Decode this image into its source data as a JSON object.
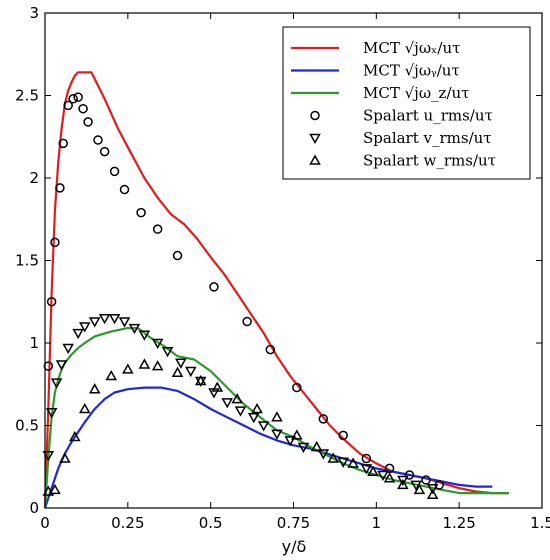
{
  "chart_data": {
    "type": "line",
    "xlabel": "y/δ",
    "ylabel": "",
    "xlim": [
      0,
      1.5
    ],
    "ylim": [
      0,
      3
    ],
    "x_ticks": [
      0,
      0.25,
      0.5,
      0.75,
      1,
      1.25,
      1.5
    ],
    "x_tick_labels": [
      "0",
      "0.25",
      "0.5",
      "0.75",
      "1",
      "1.25",
      "1.5"
    ],
    "y_ticks": [
      0,
      0.5,
      1,
      1.5,
      2,
      2.5,
      3
    ],
    "y_tick_labels": [
      "0",
      "0.5",
      "1",
      "1.5",
      "2",
      "2.5",
      "3"
    ],
    "grid": false,
    "legend_position": "top-right",
    "series": [
      {
        "name": "MCT √jωₓ/uτ",
        "kind": "line",
        "color": "#e41a1c",
        "x": [
          0,
          0.01,
          0.02,
          0.03,
          0.04,
          0.05,
          0.06,
          0.07,
          0.08,
          0.09,
          0.1,
          0.14,
          0.18,
          0.22,
          0.26,
          0.3,
          0.34,
          0.38,
          0.42,
          0.46,
          0.5,
          0.54,
          0.58,
          0.62,
          0.66,
          0.7,
          0.74,
          0.78,
          0.82,
          0.86,
          0.9,
          0.95,
          1.0,
          1.05,
          1.1,
          1.15,
          1.2,
          1.25,
          1.3,
          1.35,
          1.4
        ],
        "y": [
          0.0,
          0.6,
          1.3,
          1.8,
          2.1,
          2.3,
          2.45,
          2.53,
          2.58,
          2.62,
          2.64,
          2.64,
          2.48,
          2.3,
          2.15,
          2.0,
          1.88,
          1.78,
          1.72,
          1.63,
          1.52,
          1.42,
          1.3,
          1.18,
          1.06,
          0.92,
          0.8,
          0.7,
          0.6,
          0.5,
          0.42,
          0.33,
          0.27,
          0.22,
          0.2,
          0.18,
          0.15,
          0.12,
          0.1,
          0.09,
          0.09
        ]
      },
      {
        "name": "MCT √jωᵧ/uτ",
        "kind": "line",
        "color": "#1f28d6",
        "x": [
          0,
          0.02,
          0.04,
          0.06,
          0.08,
          0.1,
          0.12,
          0.15,
          0.18,
          0.21,
          0.25,
          0.3,
          0.35,
          0.4,
          0.45,
          0.5,
          0.55,
          0.6,
          0.65,
          0.7,
          0.75,
          0.8,
          0.85,
          0.9,
          0.95,
          1.0,
          1.05,
          1.1,
          1.15,
          1.2,
          1.25,
          1.3,
          1.35
        ],
        "y": [
          0.0,
          0.12,
          0.24,
          0.33,
          0.4,
          0.46,
          0.52,
          0.6,
          0.66,
          0.7,
          0.72,
          0.73,
          0.73,
          0.71,
          0.66,
          0.6,
          0.55,
          0.5,
          0.45,
          0.41,
          0.38,
          0.36,
          0.33,
          0.3,
          0.27,
          0.24,
          0.22,
          0.2,
          0.18,
          0.16,
          0.14,
          0.13,
          0.13
        ]
      },
      {
        "name": "MCT √jω_z/uτ",
        "kind": "line",
        "color": "#2b9a2b",
        "x": [
          0,
          0.01,
          0.02,
          0.03,
          0.04,
          0.05,
          0.06,
          0.08,
          0.1,
          0.12,
          0.15,
          0.2,
          0.25,
          0.28,
          0.32,
          0.36,
          0.4,
          0.45,
          0.5,
          0.55,
          0.6,
          0.65,
          0.7,
          0.75,
          0.8,
          0.85,
          0.9,
          0.95,
          1.0,
          1.05,
          1.1,
          1.15,
          1.2,
          1.25,
          1.3,
          1.35,
          1.4
        ],
        "y": [
          0.0,
          0.3,
          0.55,
          0.7,
          0.78,
          0.84,
          0.88,
          0.93,
          0.97,
          1.0,
          1.04,
          1.07,
          1.09,
          1.09,
          1.03,
          0.98,
          0.92,
          0.9,
          0.83,
          0.73,
          0.63,
          0.55,
          0.47,
          0.43,
          0.37,
          0.32,
          0.27,
          0.23,
          0.2,
          0.17,
          0.15,
          0.13,
          0.11,
          0.09,
          0.09,
          0.09,
          0.09
        ]
      },
      {
        "name": "Spalart u_rms/uτ",
        "kind": "circle",
        "color": "#000000",
        "x": [
          0.01,
          0.02,
          0.03,
          0.045,
          0.055,
          0.07,
          0.085,
          0.1,
          0.115,
          0.13,
          0.16,
          0.18,
          0.21,
          0.24,
          0.29,
          0.34,
          0.4,
          0.51,
          0.61,
          0.68,
          0.76,
          0.84,
          0.9,
          0.97,
          1.04,
          1.1,
          1.15,
          1.19
        ],
        "y": [
          0.86,
          1.25,
          1.61,
          1.94,
          2.21,
          2.44,
          2.48,
          2.49,
          2.42,
          2.34,
          2.23,
          2.16,
          2.04,
          1.93,
          1.79,
          1.69,
          1.53,
          1.34,
          1.13,
          0.96,
          0.73,
          0.54,
          0.44,
          0.3,
          0.24,
          0.2,
          0.17,
          0.14
        ]
      },
      {
        "name": "Spalart v_rms/uτ",
        "kind": "triangle-down",
        "color": "#000000",
        "x": [
          0.01,
          0.02,
          0.035,
          0.05,
          0.07,
          0.1,
          0.12,
          0.15,
          0.18,
          0.21,
          0.24,
          0.27,
          0.3,
          0.34,
          0.37,
          0.41,
          0.44,
          0.47,
          0.51,
          0.55,
          0.59,
          0.63,
          0.66,
          0.7,
          0.74,
          0.78,
          0.84,
          0.9,
          0.97,
          1.02,
          1.08,
          1.12,
          1.17
        ],
        "y": [
          0.32,
          0.58,
          0.76,
          0.87,
          0.97,
          1.06,
          1.1,
          1.13,
          1.15,
          1.15,
          1.13,
          1.09,
          1.05,
          1.0,
          0.95,
          0.88,
          0.83,
          0.77,
          0.7,
          0.64,
          0.59,
          0.55,
          0.5,
          0.45,
          0.41,
          0.37,
          0.33,
          0.28,
          0.24,
          0.2,
          0.17,
          0.14,
          0.12
        ]
      },
      {
        "name": "Spalart w_rms/uτ",
        "kind": "triangle-up",
        "color": "#000000",
        "x": [
          0.01,
          0.03,
          0.06,
          0.09,
          0.12,
          0.15,
          0.2,
          0.25,
          0.3,
          0.34,
          0.4,
          0.47,
          0.52,
          0.58,
          0.64,
          0.7,
          0.76,
          0.82,
          0.87,
          0.93,
          0.99,
          1.04,
          1.08,
          1.13,
          1.17
        ],
        "y": [
          0.1,
          0.11,
          0.3,
          0.43,
          0.6,
          0.72,
          0.8,
          0.84,
          0.87,
          0.86,
          0.82,
          0.77,
          0.73,
          0.66,
          0.6,
          0.55,
          0.44,
          0.37,
          0.3,
          0.27,
          0.22,
          0.18,
          0.14,
          0.11,
          0.08
        ]
      }
    ]
  }
}
